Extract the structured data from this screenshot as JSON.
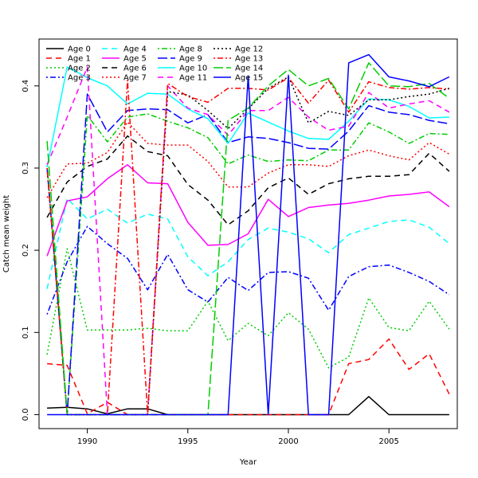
{
  "chart_data": {
    "type": "line",
    "title": "",
    "xlabel": "Year",
    "ylabel": "Catch mean weight",
    "xlim": [
      1987.6,
      2008.4
    ],
    "ylim": [
      -0.017,
      0.457
    ],
    "x_ticks": [
      1990,
      1995,
      2000,
      2005
    ],
    "y_ticks": [
      0.0,
      0.1,
      0.2,
      0.3,
      0.4
    ],
    "y_tick_labels": [
      "0.0",
      "0.1",
      "0.2",
      "0.3",
      "0.4"
    ],
    "grid": false,
    "legend_position": "top-left",
    "x": [
      1988,
      1989,
      1990,
      1991,
      1992,
      1993,
      1994,
      1995,
      1996,
      1997,
      1998,
      1999,
      2000,
      2001,
      2002,
      2003,
      2004,
      2005,
      2006,
      2007,
      2008
    ],
    "series": [
      {
        "name": "Age 0",
        "color": "#000000",
        "dash": "solid",
        "values": [
          0.008,
          0.009,
          0.007,
          0.001,
          0.007,
          0.007,
          0.0,
          0.0,
          0.0,
          0.0,
          0.0,
          0.0,
          0.0,
          0.0,
          0.0,
          0.0,
          0.022,
          0.0,
          0.0,
          0.0,
          0.0
        ]
      },
      {
        "name": "Age 1",
        "color": "#ff0000",
        "dash": "dashed",
        "values": [
          0.062,
          0.06,
          0.001,
          0.015,
          0.0,
          0.0,
          0.0,
          0.0,
          0.0,
          0.0,
          0.0,
          0.0,
          0.0,
          0.0,
          0.0,
          0.062,
          0.067,
          0.092,
          0.055,
          0.074,
          0.025
        ]
      },
      {
        "name": "Age 2",
        "color": "#00cd00",
        "dash": "dotted",
        "values": [
          0.073,
          0.202,
          0.103,
          0.103,
          0.103,
          0.105,
          0.102,
          0.102,
          0.138,
          0.09,
          0.111,
          0.096,
          0.124,
          0.104,
          0.057,
          0.07,
          0.142,
          0.106,
          0.102,
          0.138,
          0.104
        ]
      },
      {
        "name": "Age 3",
        "color": "#0000ff",
        "dash": "dashdot",
        "values": [
          0.122,
          0.186,
          0.229,
          0.208,
          0.19,
          0.152,
          0.195,
          0.152,
          0.137,
          0.167,
          0.151,
          0.173,
          0.174,
          0.166,
          0.127,
          0.168,
          0.18,
          0.182,
          0.173,
          0.162,
          0.146
        ]
      },
      {
        "name": "Age 4",
        "color": "#00ffff",
        "dash": "dashed",
        "values": [
          0.153,
          0.263,
          0.238,
          0.25,
          0.233,
          0.244,
          0.238,
          0.192,
          0.169,
          0.186,
          0.213,
          0.227,
          0.222,
          0.214,
          0.197,
          0.219,
          0.227,
          0.235,
          0.237,
          0.228,
          0.208
        ]
      },
      {
        "name": "Age 5",
        "color": "#ff00ff",
        "dash": "solid",
        "values": [
          0.193,
          0.26,
          0.265,
          0.287,
          0.304,
          0.282,
          0.281,
          0.234,
          0.206,
          0.207,
          0.22,
          0.262,
          0.241,
          0.252,
          0.255,
          0.257,
          0.261,
          0.266,
          0.268,
          0.271,
          0.253
        ]
      },
      {
        "name": "Age 6",
        "color": "#000000",
        "dash": "dashed",
        "values": [
          0.24,
          0.283,
          0.302,
          0.311,
          0.339,
          0.32,
          0.315,
          0.28,
          0.261,
          0.231,
          0.248,
          0.276,
          0.288,
          0.268,
          0.281,
          0.287,
          0.29,
          0.29,
          0.292,
          0.318,
          0.296
        ]
      },
      {
        "name": "Age 7",
        "color": "#ff0000",
        "dash": "dotted",
        "values": [
          0.264,
          0.305,
          0.306,
          0.319,
          0.356,
          0.33,
          0.328,
          0.328,
          0.308,
          0.277,
          0.277,
          0.294,
          0.304,
          0.304,
          0.302,
          0.315,
          0.322,
          0.315,
          0.31,
          0.331,
          0.317
        ]
      },
      {
        "name": "Age 8",
        "color": "#00cd00",
        "dash": "dashdot",
        "values": [
          0.303,
          0.001,
          0.364,
          0.332,
          0.362,
          0.366,
          0.357,
          0.349,
          0.337,
          0.305,
          0.316,
          0.308,
          0.31,
          0.309,
          0.322,
          0.322,
          0.355,
          0.344,
          0.33,
          0.342,
          0.341
        ]
      },
      {
        "name": "Age 9",
        "color": "#0000ff",
        "dash": "longdash",
        "values": [
          0.3,
          0.0,
          0.39,
          0.344,
          0.37,
          0.372,
          0.371,
          0.355,
          0.365,
          0.331,
          0.338,
          0.336,
          0.331,
          0.324,
          0.323,
          0.345,
          0.376,
          0.368,
          0.365,
          0.358,
          0.354
        ]
      },
      {
        "name": "Age 10",
        "color": "#00ffff",
        "dash": "solid",
        "values": [
          0.301,
          0.423,
          0.41,
          0.4,
          0.378,
          0.391,
          0.39,
          0.372,
          0.36,
          0.33,
          0.367,
          0.356,
          0.345,
          0.336,
          0.335,
          0.357,
          0.384,
          0.383,
          0.375,
          0.361,
          0.362
        ]
      },
      {
        "name": "Age 11",
        "color": "#ff00ff",
        "dash": "dashed",
        "values": [
          0.304,
          0.362,
          0.423,
          0.0,
          0.0,
          0.0,
          0.4,
          0.373,
          0.365,
          0.34,
          0.37,
          0.37,
          0.386,
          0.362,
          0.346,
          0.351,
          0.392,
          0.373,
          0.378,
          0.382,
          0.368
        ]
      },
      {
        "name": "Age 12",
        "color": "#000000",
        "dash": "dotted",
        "values": [
          0.3,
          0.0,
          0.0,
          0.0,
          0.0,
          0.0,
          0.393,
          0.389,
          0.37,
          0.348,
          0.372,
          0.397,
          0.411,
          0.355,
          0.369,
          0.364,
          0.383,
          0.383,
          0.387,
          0.39,
          0.397
        ]
      },
      {
        "name": "Age 13",
        "color": "#ff0000",
        "dash": "dashdot",
        "values": [
          0.3,
          0.0,
          0.0,
          0.0,
          0.407,
          0.0,
          0.403,
          0.387,
          0.38,
          0.397,
          0.397,
          0.395,
          0.41,
          0.379,
          0.407,
          0.368,
          0.405,
          0.398,
          0.396,
          0.398,
          0.396
        ]
      },
      {
        "name": "Age 14",
        "color": "#00cd00",
        "dash": "longdash",
        "values": [
          0.333,
          0.0,
          0.0,
          0.0,
          0.0,
          0.0,
          0.0,
          0.0,
          0.0,
          0.358,
          0.373,
          0.4,
          0.42,
          0.4,
          0.409,
          0.372,
          0.428,
          0.4,
          0.399,
          0.403,
          0.385
        ]
      },
      {
        "name": "Age 15",
        "color": "#0000ff",
        "dash": "solid",
        "values": [
          0.0,
          0.0,
          0.0,
          0.0,
          0.0,
          0.0,
          0.0,
          0.0,
          0.0,
          0.0,
          0.412,
          0.0,
          0.413,
          0.0,
          0.0,
          0.428,
          0.438,
          0.411,
          0.406,
          0.399,
          0.411
        ]
      }
    ]
  }
}
